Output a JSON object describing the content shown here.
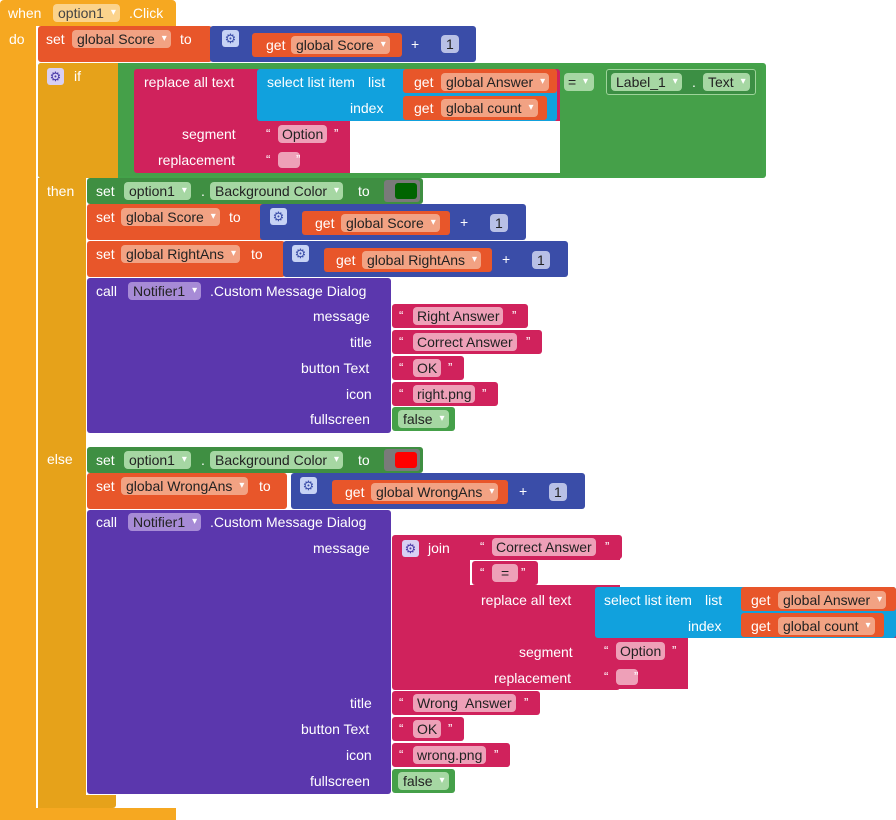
{
  "event": {
    "when": "when",
    "component": "option1",
    "event_name": ".Click",
    "do": "do"
  },
  "colors": {
    "event": "#f6a821",
    "variable": "#e8562a",
    "math": "#3a4da8",
    "text": "#d0225c",
    "list": "#11a1dd",
    "control": "#e6a21a",
    "compare": "#45a049",
    "call": "#5b37ad",
    "green_swatch": "#006400",
    "red_swatch": "#ff0000"
  },
  "score_update": {
    "set": "set",
    "var": "global Score",
    "to": "to",
    "get": "get",
    "get_var": "global Score",
    "plus": "+",
    "num": "1"
  },
  "if_block": {
    "if": "if",
    "replace_all_text": "replace all text",
    "select_list_item": "select list item",
    "list": "list",
    "get1": "get",
    "list_var": "global Answer",
    "index": "index",
    "get2": "get",
    "index_var": "global count",
    "segment": "segment",
    "segment_val": "Option",
    "replacement": "replacement",
    "replacement_val": "",
    "eq": "=",
    "label_comp": "Label_1",
    "dot": ".",
    "label_prop": "Text"
  },
  "then": {
    "label": "then",
    "set_bg": {
      "set": "set",
      "component": "option1",
      "dot": ".",
      "prop": "Background Color",
      "to": "to"
    },
    "score": {
      "set": "set",
      "var": "global Score",
      "to": "to",
      "get": "get",
      "get_var": "global Score",
      "plus": "+",
      "num": "1"
    },
    "right": {
      "set": "set",
      "var": "global RightAns",
      "to": "to",
      "get": "get",
      "get_var": "global RightAns",
      "plus": "+",
      "num": "1"
    },
    "call": {
      "call": "call",
      "component": "Notifier1",
      "method": ".Custom Message Dialog",
      "message": "message",
      "message_val": "Right Answer",
      "title": "title",
      "title_val": "Correct Answer",
      "button": "button Text",
      "button_val": "OK",
      "icon": "icon",
      "icon_val": "right.png",
      "fullscreen": "fullscreen",
      "fullscreen_val": "false"
    }
  },
  "else": {
    "label": "else",
    "set_bg": {
      "set": "set",
      "component": "option1",
      "dot": ".",
      "prop": "Background Color",
      "to": "to"
    },
    "wrong": {
      "set": "set",
      "var": "global WrongAns",
      "to": "to",
      "get": "get",
      "get_var": "global WrongAns",
      "plus": "+",
      "num": "1"
    },
    "call": {
      "call": "call",
      "component": "Notifier1",
      "method": ".Custom Message Dialog",
      "message": "message",
      "join": "join",
      "join1": "Correct Answer",
      "join2": "=",
      "replace_all_text": "replace all text",
      "select_list_item": "select list item",
      "list": "list",
      "get1": "get",
      "list_var": "global Answer",
      "index": "index",
      "get2": "get",
      "index_var": "global count",
      "segment": "segment",
      "segment_val": "Option",
      "replacement": "replacement",
      "replacement_val": "",
      "title": "title",
      "title_val": "Wrong  Answer",
      "button": "button Text",
      "button_val": "OK",
      "icon": "icon",
      "icon_val": "wrong.png",
      "fullscreen": "fullscreen",
      "fullscreen_val": "false"
    }
  }
}
